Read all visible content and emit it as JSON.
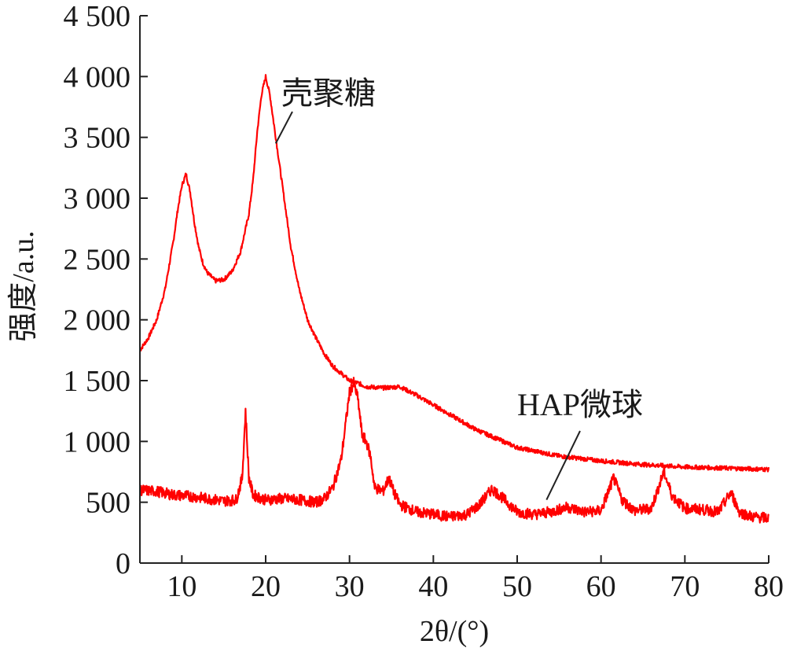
{
  "chart_data": {
    "type": "line",
    "xlabel": "2θ/(°)",
    "ylabel": "强度/a.u.",
    "xlim": [
      5,
      80
    ],
    "ylim": [
      0,
      4500
    ],
    "x_ticks": [
      10,
      20,
      30,
      40,
      50,
      60,
      70,
      80
    ],
    "x_tick_labels": [
      "10",
      "20",
      "30",
      "40",
      "50",
      "60",
      "70",
      "80"
    ],
    "y_ticks": [
      0,
      500,
      1000,
      1500,
      2000,
      2500,
      3000,
      3500,
      4000,
      4500
    ],
    "y_tick_labels": [
      "0",
      "500",
      "1 000",
      "1 500",
      "2 000",
      "2 500",
      "3 000",
      "3 500",
      "4 000",
      "4 500"
    ],
    "grid": false,
    "legend": "none",
    "series_color": "#ff0000",
    "series": [
      {
        "name": "壳聚糖",
        "x": [
          5,
          6,
          7,
          8,
          9,
          9.5,
          10,
          10.5,
          11,
          11.5,
          12,
          12.5,
          13,
          14,
          15,
          16,
          17,
          18,
          18.5,
          19,
          19.5,
          20,
          20.5,
          21,
          22,
          23,
          24,
          25,
          26,
          27,
          28,
          29,
          30,
          31,
          32,
          34,
          36,
          38,
          40,
          45,
          50,
          55,
          60,
          65,
          70,
          75,
          80
        ],
        "y": [
          1750,
          1850,
          2000,
          2250,
          2650,
          2900,
          3100,
          3200,
          3050,
          2800,
          2600,
          2470,
          2390,
          2320,
          2330,
          2400,
          2560,
          2870,
          3150,
          3550,
          3850,
          4000,
          3850,
          3600,
          3100,
          2600,
          2250,
          2000,
          1850,
          1720,
          1620,
          1560,
          1500,
          1480,
          1450,
          1440,
          1450,
          1380,
          1300,
          1100,
          950,
          880,
          840,
          810,
          790,
          780,
          770
        ]
      },
      {
        "name": "HAP微球",
        "x": [
          5,
          7,
          9,
          11,
          13,
          15,
          16.5,
          17.2,
          17.6,
          18,
          18.5,
          20,
          22,
          24,
          26,
          27,
          28,
          29,
          30,
          30.5,
          31,
          31.5,
          32,
          32.5,
          33,
          34,
          34.7,
          35.3,
          36,
          38,
          40,
          42,
          44,
          45.5,
          47,
          48.5,
          50,
          52,
          54,
          56,
          58,
          60,
          61.5,
          62.5,
          64,
          66,
          67.5,
          68.5,
          70,
          72,
          74,
          75.5,
          76.5,
          78,
          80
        ],
        "y": [
          600,
          590,
          560,
          550,
          530,
          510,
          520,
          700,
          1250,
          700,
          560,
          520,
          530,
          520,
          500,
          530,
          620,
          850,
          1400,
          1480,
          1350,
          1050,
          1000,
          880,
          620,
          590,
          700,
          580,
          480,
          420,
          400,
          380,
          400,
          480,
          610,
          520,
          420,
          400,
          420,
          460,
          420,
          430,
          700,
          520,
          430,
          450,
          750,
          550,
          450,
          440,
          420,
          580,
          420,
          380,
          370
        ]
      }
    ],
    "annotations": [
      {
        "text": "壳聚糖",
        "series": "壳聚糖",
        "pointer_x": 21.2,
        "pointer_y": 3450
      },
      {
        "text": "HAP微球",
        "series": "HAP微球",
        "pointer_x": 53.5,
        "pointer_y": 520
      }
    ]
  }
}
